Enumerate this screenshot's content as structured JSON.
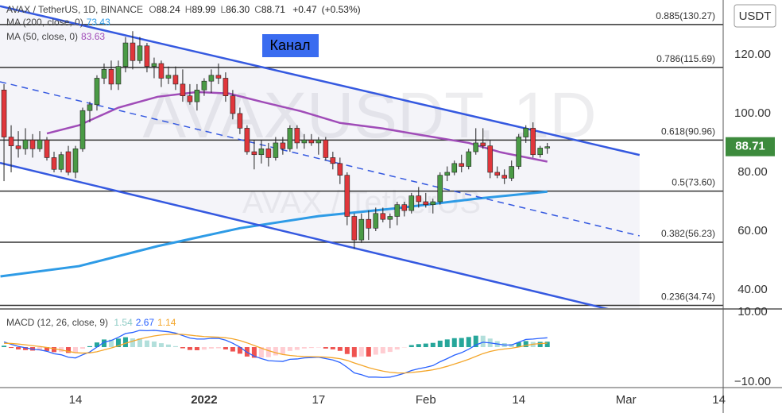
{
  "chart_data": [
    {
      "type": "candlestick",
      "title": "AVAX / TetherUS, 1D, BINANCE",
      "ohlc": [
        {
          "prefix": "O",
          "value": 88.24,
          "label": "88.24"
        },
        {
          "prefix": "H",
          "value": 89.99,
          "label": "89.99"
        },
        {
          "prefix": "L",
          "value": 86.3,
          "label": "86.30"
        },
        {
          "prefix": "C",
          "value": 88.71,
          "label": "88.71"
        }
      ],
      "change": {
        "value": 0.47,
        "label": "+0.47"
      },
      "change_pct": {
        "value": 0.53,
        "label": "(+0.53%)"
      },
      "unit": "USDT",
      "watermark": "AVAXUSDT, 1D",
      "watermark_sub": "AVAX / TetherUS",
      "annotation": "Канал",
      "x": [
        0,
        1,
        2,
        3,
        4,
        5,
        6,
        7,
        8,
        9,
        10,
        11,
        12,
        13,
        14,
        15,
        16,
        17,
        18,
        19,
        20,
        21,
        22,
        23,
        24,
        25,
        26,
        27,
        28,
        29,
        30,
        31,
        32,
        33,
        34,
        35,
        36,
        37,
        38,
        39,
        40,
        41,
        42,
        43,
        44,
        45,
        46,
        47,
        48,
        49,
        50,
        51,
        52,
        53,
        54,
        55,
        56,
        57,
        58,
        59,
        60,
        61,
        62,
        63,
        64,
        65,
        66,
        67,
        68,
        69,
        70,
        71,
        72,
        73,
        74,
        75,
        76
      ],
      "open": [
        108,
        92,
        89,
        88,
        91,
        88,
        91,
        85,
        81,
        87,
        80,
        88,
        101,
        103,
        112,
        115,
        110,
        116,
        124,
        118,
        123,
        116,
        117,
        112,
        113,
        110,
        106,
        104,
        108,
        111,
        113,
        112,
        106,
        100,
        95,
        87,
        86,
        88,
        85,
        90,
        88,
        95,
        90,
        91,
        90,
        91,
        85,
        83,
        79,
        65,
        57,
        64,
        61,
        66,
        64,
        65,
        69,
        67,
        72,
        70,
        69,
        70,
        79,
        80,
        83,
        82,
        87,
        90,
        89,
        80,
        79,
        78,
        82,
        92,
        95,
        86,
        88.24
      ],
      "high": [
        110,
        96,
        94,
        95,
        93,
        94,
        92,
        87,
        87,
        89,
        89,
        102,
        104,
        113,
        117,
        118,
        118,
        126,
        128,
        126,
        124,
        119,
        118,
        116,
        116,
        115,
        110,
        110,
        112,
        115,
        117,
        114,
        108,
        102,
        96,
        91,
        91,
        90,
        92,
        92,
        96,
        96,
        93,
        93,
        92,
        92,
        87,
        85,
        80,
        66,
        66,
        67,
        68,
        68,
        66,
        70,
        70,
        73,
        75,
        73,
        71,
        80,
        82,
        84,
        86,
        88,
        95,
        95,
        91,
        82,
        81,
        84,
        93,
        96,
        97,
        89,
        89.99
      ],
      "low": [
        77,
        80,
        85,
        86,
        85,
        87,
        84,
        80,
        80,
        79,
        78,
        87,
        97,
        101,
        110,
        108,
        108,
        114,
        115,
        117,
        114,
        112,
        109,
        110,
        108,
        104,
        103,
        101,
        106,
        107,
        110,
        104,
        98,
        93,
        86,
        81,
        83,
        82,
        84,
        86,
        87,
        88,
        88,
        89,
        86,
        84,
        81,
        76,
        62,
        54,
        56,
        57,
        60,
        63,
        61,
        62,
        65,
        66,
        68,
        68,
        66,
        69,
        77,
        79,
        80,
        81,
        86,
        88,
        78,
        78,
        76,
        77,
        81,
        90,
        85,
        85,
        86.3
      ],
      "close": [
        92,
        89,
        88,
        91,
        88,
        91,
        85,
        81,
        86,
        80,
        88,
        101,
        103,
        112,
        115,
        110,
        116,
        124,
        118,
        123,
        116,
        117,
        112,
        113,
        110,
        106,
        104,
        108,
        111,
        113,
        112,
        106,
        100,
        95,
        87,
        86,
        88,
        85,
        90,
        88,
        95,
        90,
        91,
        90,
        91,
        85,
        83,
        79,
        65,
        57,
        64,
        61,
        66,
        64,
        65,
        69,
        67,
        72,
        70,
        69,
        70,
        79,
        80,
        83,
        82,
        87,
        90,
        89,
        80,
        79,
        78,
        82,
        92,
        95,
        86,
        88.24,
        88.71
      ],
      "up_color": "#4a9a45",
      "down_color": "#e0363b",
      "last_price_color": "#3d8b3d",
      "series": [
        {
          "name": "MA (200, close, 0)",
          "color": "#2e9be6",
          "x": [
            -0.5,
            10.5,
            21.5,
            33,
            44,
            55,
            66,
            76
          ],
          "values": [
            44.6,
            48.1,
            54.9,
            61,
            65.1,
            67.8,
            71,
            73.43
          ]
        },
        {
          "name": "MA (50, close, 0)",
          "color": "#a04cb8",
          "x": [
            6,
            10.5,
            16,
            21.5,
            27,
            31.5,
            36,
            41.5,
            47,
            53,
            59.5,
            65,
            69.5,
            76
          ],
          "values": [
            93.2,
            96,
            102,
            105.7,
            107.3,
            106.8,
            104,
            100.8,
            96.8,
            94.9,
            92.2,
            90,
            86.8,
            83.63
          ]
        }
      ],
      "levels": [
        {
          "label": "0.885(130.27)",
          "value": 130.27
        },
        {
          "label": "0.786(115.69)",
          "value": 115.69
        },
        {
          "label": "0.618(90.96)",
          "value": 90.96
        },
        {
          "label": "0.5(73.60)",
          "value": 73.6
        },
        {
          "label": "0.382(56.23)",
          "value": 56.23
        },
        {
          "label": "0.236(34.74)",
          "value": 34.74
        }
      ],
      "channel": {
        "color": "#3559e0",
        "lines": [
          {
            "style": "solid",
            "x": [
              -0.56,
              88.9
            ],
            "y": [
              136.5,
              85.9
            ]
          },
          {
            "style": "dashed",
            "x": [
              -0.56,
              88.9
            ],
            "y": [
              110.8,
              58.4
            ]
          },
          {
            "style": "solid",
            "x": [
              -0.56,
              85
            ],
            "y": [
              83.2,
              33.2
            ]
          }
        ]
      },
      "xlim": [
        -0.56,
        100.6
      ],
      "ylim": [
        33.8,
        138.6
      ],
      "yticks": [
        {
          "value": 40,
          "label": "40.00"
        },
        {
          "value": 60,
          "label": "60.00"
        },
        {
          "value": 80,
          "label": "80.00"
        },
        {
          "value": 100,
          "label": "100.00"
        },
        {
          "value": 120,
          "label": "120.00"
        }
      ]
    },
    {
      "type": "macd",
      "name": "MACD (12, 26, close, 9)",
      "histogram": {
        "colors": [
          "#26a69a",
          "#b2dfdb",
          "#ffcdd2",
          "#ef5350"
        ],
        "legend_color": "#8ccbc4",
        "values": [
          0.4,
          -0.24,
          -0.67,
          -0.86,
          -1.01,
          -0.97,
          -1.1,
          -1.44,
          -1.39,
          -1.67,
          -1.5,
          -0.48,
          0.26,
          1.33,
          2.18,
          2.14,
          2.43,
          2.82,
          2.5,
          2.48,
          1.9,
          1.6,
          1.12,
          0.74,
          0.27,
          -0.34,
          -0.83,
          -0.9,
          -0.72,
          -0.42,
          -0.34,
          -0.67,
          -1.26,
          -1.89,
          -2.71,
          -3.05,
          -3,
          -2.88,
          -2.38,
          -1.99,
          -1.11,
          -0.81,
          -0.41,
          -0.25,
          -0.12,
          -0.42,
          -0.65,
          -1.08,
          -1.98,
          -2.86,
          -2.69,
          -2.71,
          -2.17,
          -1.82,
          -1.38,
          -0.7,
          -0.08,
          0.58,
          0.86,
          1.01,
          1.21,
          1.85,
          2.2,
          2.56,
          2.61,
          2.89,
          3.27,
          3.26,
          2.45,
          1.72,
          1.14,
          0.91,
          1.37,
          1.74,
          1.47,
          1.5,
          1.54
        ]
      },
      "series": [
        {
          "color": "#2962ff",
          "values": [
            1.5,
            0.8,
            0.2,
            -0.2,
            -0.6,
            -0.8,
            -1.2,
            -1.9,
            -2.2,
            -2.9,
            -3.1,
            -2.2,
            -1.4,
            0,
            1.4,
            1.9,
            2.8,
            3.9,
            4.2,
            4.8,
            4.7,
            4.8,
            4.6,
            4.4,
            4,
            3.3,
            2.6,
            2.3,
            2.3,
            2.5,
            2.5,
            2,
            1.1,
            0,
            -1.5,
            -2.6,
            -3.3,
            -3.9,
            -4,
            -4.1,
            -3.5,
            -3.4,
            -3.1,
            -3,
            -2.9,
            -3.3,
            -3.7,
            -4.4,
            -5.8,
            -7.4,
            -7.9,
            -8.6,
            -8.6,
            -8.7,
            -8.6,
            -8.1,
            -7.5,
            -6.7,
            -6.2,
            -5.8,
            -5.3,
            -4.2,
            -3.3,
            -2.3,
            -1.6,
            -0.6,
            0.6,
            1.4,
            1.2,
            0.9,
            0.6,
            0.6,
            1.4,
            2.2,
            2.3,
            2.5,
            2.67
          ]
        },
        {
          "color": "#f4a62a",
          "values": [
            1.1,
            1.04,
            0.87,
            0.66,
            0.41,
            0.17,
            -0.1,
            -0.46,
            -0.81,
            -1.23,
            -1.6,
            -1.72,
            -1.66,
            -1.33,
            -0.78,
            -0.24,
            0.37,
            1.08,
            1.7,
            2.32,
            2.8,
            3.2,
            3.48,
            3.66,
            3.73,
            3.64,
            3.43,
            3.2,
            3.02,
            2.92,
            2.84,
            2.67,
            2.36,
            1.89,
            1.21,
            0.45,
            -0.3,
            -1.02,
            -1.62,
            -2.11,
            -2.39,
            -2.59,
            -2.69,
            -2.75,
            -2.78,
            -2.88,
            -3.05,
            -3.32,
            -3.82,
            -4.54,
            -5.21,
            -5.89,
            -6.43,
            -6.88,
            -7.22,
            -7.4,
            -7.42,
            -7.28,
            -7.06,
            -6.81,
            -6.51,
            -6.05,
            -5.5,
            -4.86,
            -4.21,
            -3.49,
            -2.67,
            -1.86,
            -1.25,
            -0.82,
            -0.54,
            -0.31,
            0.03,
            0.46,
            0.83,
            1,
            1.14
          ]
        }
      ],
      "ylim": [
        -11.6,
        10.7
      ],
      "yticks": [
        {
          "value": 10,
          "label": "10.00"
        },
        {
          "value": -10,
          "label": "−10.00"
        }
      ],
      "xticks": [
        {
          "value": 10,
          "label": "14"
        },
        {
          "value": 28,
          "label": "2022"
        },
        {
          "value": 44,
          "label": "17"
        },
        {
          "value": 59,
          "label": "Feb"
        },
        {
          "value": 72,
          "label": "14"
        },
        {
          "value": 87,
          "label": "Mar"
        },
        {
          "value": 100,
          "label": "14"
        }
      ]
    }
  ]
}
